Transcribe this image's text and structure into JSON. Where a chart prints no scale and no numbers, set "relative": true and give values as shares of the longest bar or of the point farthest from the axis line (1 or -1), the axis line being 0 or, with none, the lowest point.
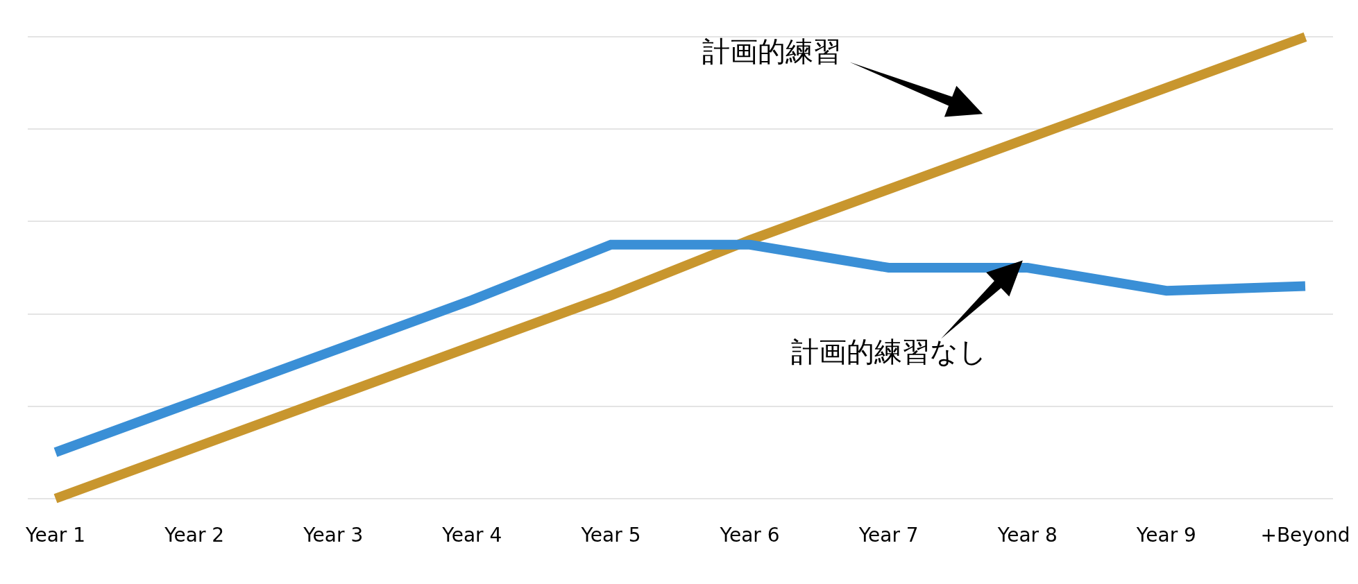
{
  "chart_data": {
    "type": "line",
    "relative": true,
    "categories": [
      "Year 1",
      "Year 2",
      "Year 3",
      "Year 4",
      "Year 5",
      "Year 6",
      "Year 7",
      "Year 8",
      "Year 9",
      "+Beyond"
    ],
    "series": [
      {
        "color": "#c8962e",
        "values": [
          0,
          0.11,
          0.22,
          0.33,
          0.44,
          0.56,
          0.67,
          0.78,
          0.89,
          1
        ]
      },
      {
        "color": "#3a8fd6",
        "values": [
          0.1,
          0.21,
          0.32,
          0.43,
          0.55,
          0.55,
          0.5,
          0.5,
          0.45,
          0.46
        ]
      }
    ],
    "annotations": [
      "計画的練習",
      "計画的練習なし"
    ],
    "grid": "y",
    "marker": "none",
    "line_style": "solid"
  }
}
